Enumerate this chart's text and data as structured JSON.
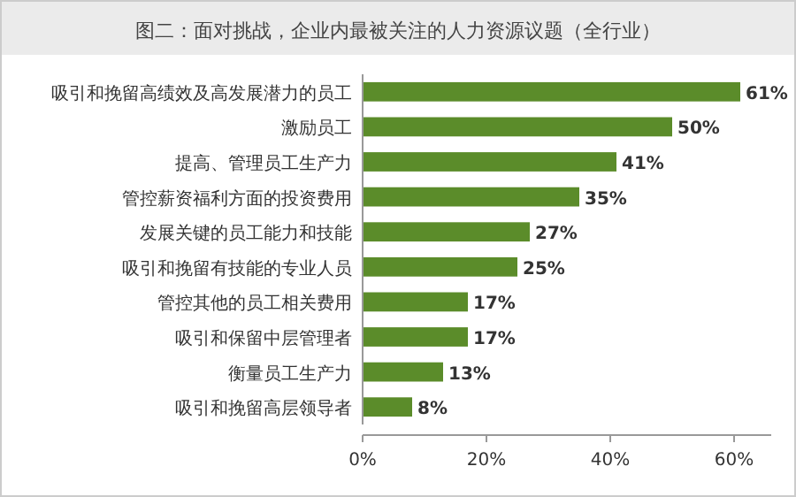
{
  "chart_data": {
    "type": "bar",
    "orientation": "horizontal",
    "title": "图二：面对挑战，企业内最被关注的人力资源议题（全行业）",
    "categories": [
      "吸引和挽留高绩效及高发展潜力的员工",
      "激励员工",
      "提高、管理员工生产力",
      "管控薪资福利方面的投资费用",
      "发展关键的员工能力和技能",
      "吸引和挽留有技能的专业人员",
      "管控其他的员工相关费用",
      "吸引和保留中层管理者",
      "衡量员工生产力",
      "吸引和挽留高层领导者"
    ],
    "values": [
      61,
      50,
      41,
      35,
      27,
      25,
      17,
      17,
      13,
      8
    ],
    "value_labels": [
      "61%",
      "50%",
      "41%",
      "35%",
      "27%",
      "25%",
      "17%",
      "17%",
      "13%",
      "8%"
    ],
    "color": "#5b8c2a",
    "xlim": [
      0,
      66
    ],
    "xticks": [
      {
        "value": 0,
        "label": "0%"
      },
      {
        "value": 20,
        "label": "20%"
      },
      {
        "value": 40,
        "label": "40%"
      },
      {
        "value": 60,
        "label": "60%"
      }
    ],
    "grid": false
  }
}
